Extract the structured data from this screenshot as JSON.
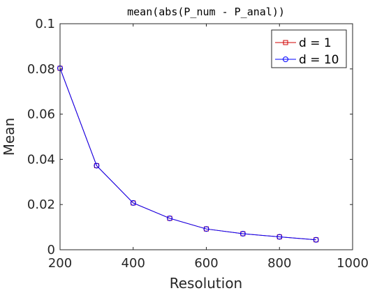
{
  "chart_data": {
    "type": "line",
    "title": "mean(abs(P_num - P_anal))",
    "xlabel": "Resolution",
    "ylabel": "Mean",
    "xlim": [
      200,
      1000
    ],
    "ylim": [
      0,
      0.1
    ],
    "x_ticks": [
      "200",
      "400",
      "600",
      "800",
      "1000"
    ],
    "y_ticks": [
      "0",
      "0.02",
      "0.04",
      "0.06",
      "0.08",
      "0.1"
    ],
    "x_tick_values": [
      200,
      400,
      600,
      800,
      1000
    ],
    "y_tick_values": [
      0,
      0.02,
      0.04,
      0.06,
      0.08,
      0.1
    ],
    "x": [
      200,
      300,
      400,
      500,
      600,
      700,
      800,
      900
    ],
    "series": [
      {
        "name": "d = 1",
        "color": "#d00000",
        "marker": "square",
        "values": [
          0.0803,
          0.0372,
          0.0207,
          0.0139,
          0.0092,
          0.0071,
          0.0057,
          0.0044
        ]
      },
      {
        "name": "d = 10",
        "color": "#0000ff",
        "marker": "circle",
        "values": [
          0.0803,
          0.0372,
          0.0207,
          0.0139,
          0.0092,
          0.0071,
          0.0057,
          0.0044
        ]
      }
    ],
    "legend_position": "top-right",
    "grid": false
  }
}
